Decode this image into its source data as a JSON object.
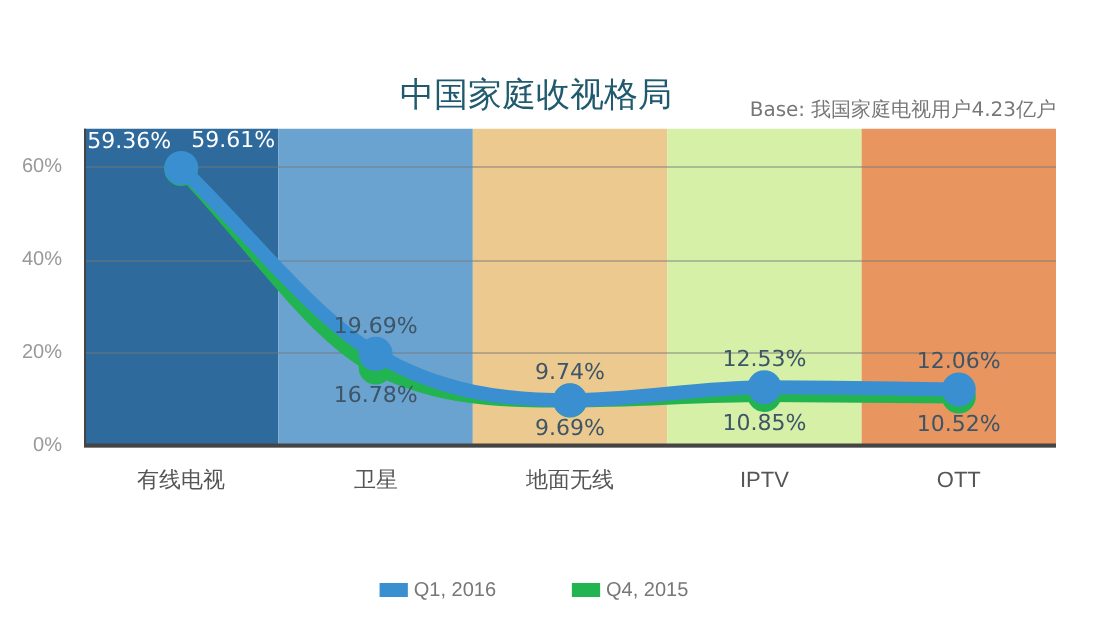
{
  "chart_data": {
    "type": "line",
    "title": "中国家庭收视格局",
    "annotations": [
      "Base: 我国家庭电视用户4.23亿户"
    ],
    "categories": [
      "有线电视",
      "卫星",
      "地面无线",
      "IPTV",
      "OTT"
    ],
    "series": [
      {
        "name": "Q1, 2016",
        "color": "#3a8fd0",
        "values": [
          59.61,
          19.69,
          9.74,
          12.53,
          12.06
        ],
        "value_labels": [
          "59.61%",
          "19.69%",
          "9.74%",
          "12.53%",
          "12.06%"
        ]
      },
      {
        "name": "Q4, 2015",
        "color": "#22b450",
        "values": [
          59.36,
          16.78,
          9.69,
          10.85,
          10.52
        ],
        "value_labels": [
          "59.36%",
          "16.78%",
          "9.69%",
          "10.85%",
          "10.52%"
        ]
      }
    ],
    "bands": [
      {
        "axis": "x",
        "from": "有线电视",
        "to": "有线电视",
        "color": "#2e6a9c"
      },
      {
        "axis": "x",
        "from": "卫星",
        "to": "卫星",
        "color": "#6aa3cf"
      },
      {
        "axis": "x",
        "from": "地面无线",
        "to": "地面无线",
        "color": "#ecc98e"
      },
      {
        "axis": "x",
        "from": "IPTV",
        "to": "IPTV",
        "color": "#d6f0a8"
      },
      {
        "axis": "x",
        "from": "OTT",
        "to": "OTT",
        "color": "#e8955f"
      }
    ],
    "ylim": [
      0,
      68
    ],
    "yticks": [
      {
        "value": 0,
        "label": "0%"
      },
      {
        "value": 20,
        "label": "20%"
      },
      {
        "value": 40,
        "label": "40%"
      },
      {
        "value": 60,
        "label": "60%"
      }
    ],
    "grid": "y",
    "legend": "bottom",
    "marker": "circle",
    "line_style": "solid"
  }
}
